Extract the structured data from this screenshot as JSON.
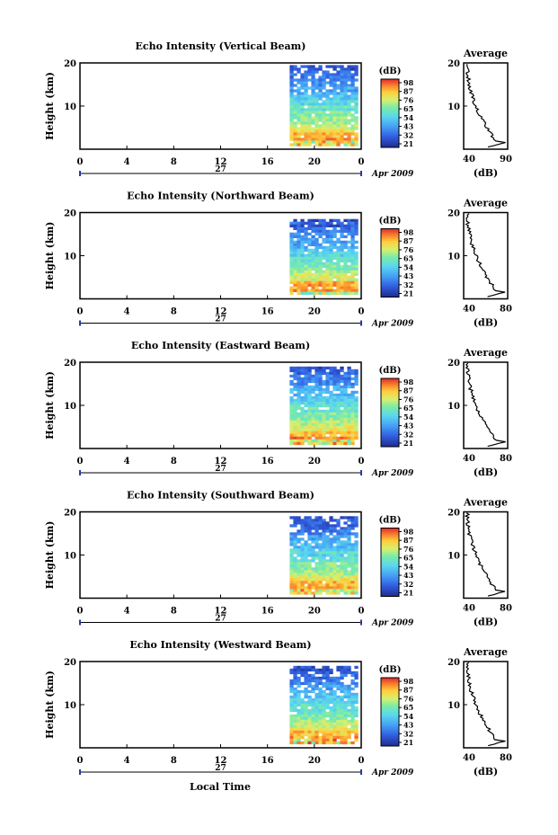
{
  "figure": {
    "x_axis_title": "Local Time",
    "date_label": "Apr 2009",
    "day_label": "27",
    "colorbar_unit": "(dB)",
    "average_title": "Average",
    "average_xlabel": "(dB)",
    "height_label": "Height (km)"
  },
  "chart_data": [
    {
      "type": "heatmap",
      "title": "Echo Intensity (Vertical Beam)",
      "ylabel": "Height (km)",
      "xlim": [
        0,
        24
      ],
      "ylim": [
        0,
        20
      ],
      "x_ticks": [
        "0",
        "4",
        "8",
        "12",
        "16",
        "20",
        "0"
      ],
      "y_ticks": [
        "10",
        "20"
      ],
      "data_start_hour": 17.9,
      "data_top_km": 19.5,
      "colorbar_ticks": [
        "21",
        "32",
        "43",
        "54",
        "65",
        "76",
        "87",
        "98"
      ],
      "average_profile": {
        "xlim": [
          40,
          90
        ],
        "x_ticks": [
          "40",
          "90"
        ],
        "y_ticks": [
          "10",
          "20"
        ]
      }
    },
    {
      "type": "heatmap",
      "title": "Echo Intensity (Northward Beam)",
      "ylabel": "Height (km)",
      "xlim": [
        0,
        24
      ],
      "ylim": [
        0,
        20
      ],
      "x_ticks": [
        "0",
        "4",
        "8",
        "12",
        "16",
        "20",
        "0"
      ],
      "y_ticks": [
        "10",
        "20"
      ],
      "data_start_hour": 17.9,
      "data_top_km": 18.5,
      "colorbar_ticks": [
        "21",
        "32",
        "43",
        "54",
        "65",
        "76",
        "87",
        "98"
      ],
      "average_profile": {
        "xlim": [
          40,
          80
        ],
        "x_ticks": [
          "40",
          "80"
        ],
        "y_ticks": [
          "10",
          "20"
        ]
      }
    },
    {
      "type": "heatmap",
      "title": "Echo Intensity (Eastward Beam)",
      "ylabel": "Height (km)",
      "xlim": [
        0,
        24
      ],
      "ylim": [
        0,
        20
      ],
      "x_ticks": [
        "0",
        "4",
        "8",
        "12",
        "16",
        "20",
        "0"
      ],
      "y_ticks": [
        "10",
        "20"
      ],
      "data_start_hour": 17.9,
      "data_top_km": 19.0,
      "colorbar_ticks": [
        "21",
        "32",
        "43",
        "54",
        "65",
        "76",
        "87",
        "98"
      ],
      "average_profile": {
        "xlim": [
          40,
          80
        ],
        "x_ticks": [
          "40",
          "80"
        ],
        "y_ticks": [
          "10",
          "20"
        ]
      }
    },
    {
      "type": "heatmap",
      "title": "Echo Intensity (Southward Beam)",
      "ylabel": "Height (km)",
      "xlim": [
        0,
        24
      ],
      "ylim": [
        0,
        20
      ],
      "x_ticks": [
        "0",
        "4",
        "8",
        "12",
        "16",
        "20",
        "0"
      ],
      "y_ticks": [
        "10",
        "20"
      ],
      "data_start_hour": 17.9,
      "data_top_km": 19.0,
      "colorbar_ticks": [
        "21",
        "32",
        "43",
        "54",
        "65",
        "76",
        "87",
        "98"
      ],
      "average_profile": {
        "xlim": [
          40,
          80
        ],
        "x_ticks": [
          "40",
          "80"
        ],
        "y_ticks": [
          "10",
          "20"
        ]
      }
    },
    {
      "type": "heatmap",
      "title": "Echo Intensity (Westward Beam)",
      "ylabel": "Height (km)",
      "xlim": [
        0,
        24
      ],
      "ylim": [
        0,
        20
      ],
      "x_ticks": [
        "0",
        "4",
        "8",
        "12",
        "16",
        "20",
        "0"
      ],
      "y_ticks": [
        "10",
        "20"
      ],
      "data_start_hour": 17.9,
      "data_top_km": 19.0,
      "colorbar_ticks": [
        "21",
        "32",
        "43",
        "54",
        "65",
        "76",
        "87",
        "98"
      ],
      "average_profile": {
        "xlim": [
          40,
          80
        ],
        "x_ticks": [
          "40",
          "80"
        ],
        "y_ticks": [
          "10",
          "20"
        ]
      }
    }
  ]
}
